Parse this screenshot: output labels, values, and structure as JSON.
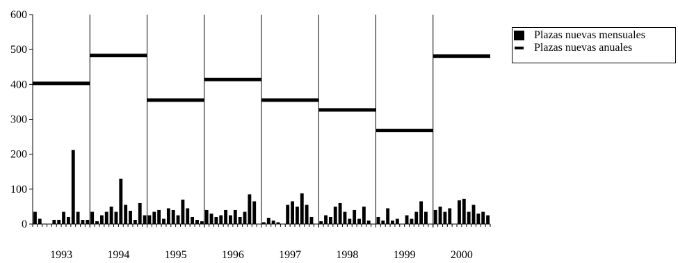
{
  "chart_data": {
    "type": "bar",
    "title": "",
    "xlabel": "",
    "ylabel": "",
    "ylim": [
      0,
      600
    ],
    "yticks": [
      "0",
      "100",
      "200",
      "300",
      "400",
      "500",
      "600"
    ],
    "years": [
      "1993",
      "1994",
      "1995",
      "1996",
      "1997",
      "1998",
      "1999",
      "2000"
    ],
    "legend_position": "top-right",
    "legend": {
      "monthly": "Plazas nuevas mensuales",
      "annual": "Plazas nuevas anuales"
    },
    "series": [
      {
        "name": "Plazas nuevas mensuales",
        "kind": "bar",
        "values": [
          35,
          15,
          0,
          0,
          12,
          12,
          35,
          20,
          212,
          35,
          12,
          12,
          35,
          8,
          25,
          35,
          50,
          35,
          130,
          55,
          38,
          12,
          60,
          25,
          25,
          35,
          40,
          15,
          45,
          40,
          25,
          70,
          45,
          20,
          12,
          8,
          40,
          30,
          20,
          25,
          40,
          25,
          40,
          20,
          35,
          85,
          65,
          0,
          5,
          18,
          10,
          5,
          0,
          55,
          65,
          50,
          88,
          55,
          20,
          0,
          8,
          25,
          20,
          50,
          60,
          35,
          15,
          40,
          15,
          50,
          10,
          0,
          20,
          10,
          45,
          10,
          15,
          0,
          25,
          15,
          35,
          65,
          35,
          0,
          40,
          50,
          35,
          45,
          0,
          68,
          72,
          35,
          55,
          30,
          35,
          25
        ]
      },
      {
        "name": "Plazas nuevas anuales",
        "kind": "annual",
        "values": [
          403,
          483,
          355,
          414,
          355,
          327,
          268,
          481
        ]
      }
    ]
  }
}
